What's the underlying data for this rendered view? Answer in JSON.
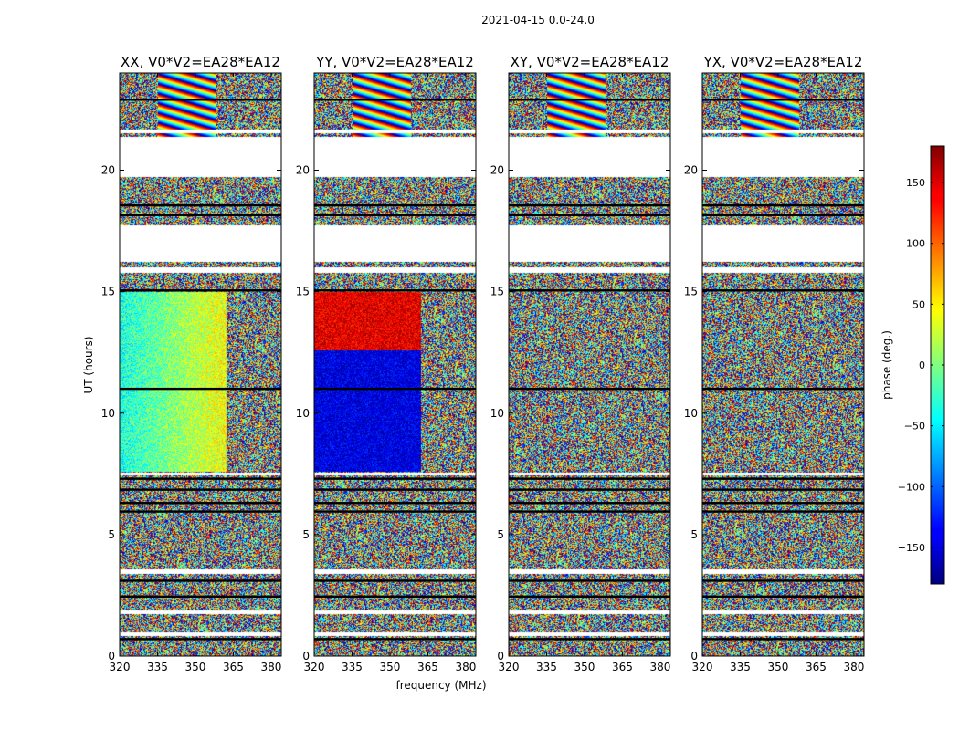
{
  "figure": {
    "suptitle": "2021-04-15 0.0-24.0",
    "xlabel": "frequency (MHz)",
    "ylabel": "UT (hours)"
  },
  "chart_data": {
    "type": "heatmap",
    "panels": [
      {
        "title": "XX, V0*V2=EA28*EA12",
        "pattern": "xx"
      },
      {
        "title": "YY, V0*V2=EA28*EA12",
        "pattern": "yy"
      },
      {
        "title": "XY, V0*V2=EA28*EA12",
        "pattern": "noise"
      },
      {
        "title": "YX, V0*V2=EA28*EA12",
        "pattern": "noise"
      }
    ],
    "x": {
      "label": "frequency (MHz)",
      "min": 320,
      "max": 384,
      "ticks": [
        320,
        335,
        350,
        365,
        380
      ]
    },
    "y": {
      "label": "UT (hours)",
      "min": 0,
      "max": 24,
      "ticks": [
        0,
        5,
        10,
        15,
        20
      ]
    },
    "colorbar": {
      "label": "phase (deg.)",
      "min": -180,
      "max": 180,
      "ticks": [
        -150,
        -100,
        -50,
        0,
        50,
        100,
        150
      ],
      "colormap": "jet"
    },
    "blank_intervals_hours": [
      [
        0.85,
        1.0
      ],
      [
        1.75,
        1.9
      ],
      [
        3.4,
        3.6
      ],
      [
        7.45,
        7.55
      ],
      [
        15.8,
        16.0
      ],
      [
        16.25,
        17.75
      ],
      [
        19.75,
        21.4
      ],
      [
        21.55,
        21.7
      ]
    ],
    "dark_gap_lines_hours": [
      0.7,
      2.45,
      3.1,
      5.95,
      6.3,
      6.85,
      7.3,
      11.0,
      15.05,
      18.15,
      18.55,
      22.9
    ]
  }
}
